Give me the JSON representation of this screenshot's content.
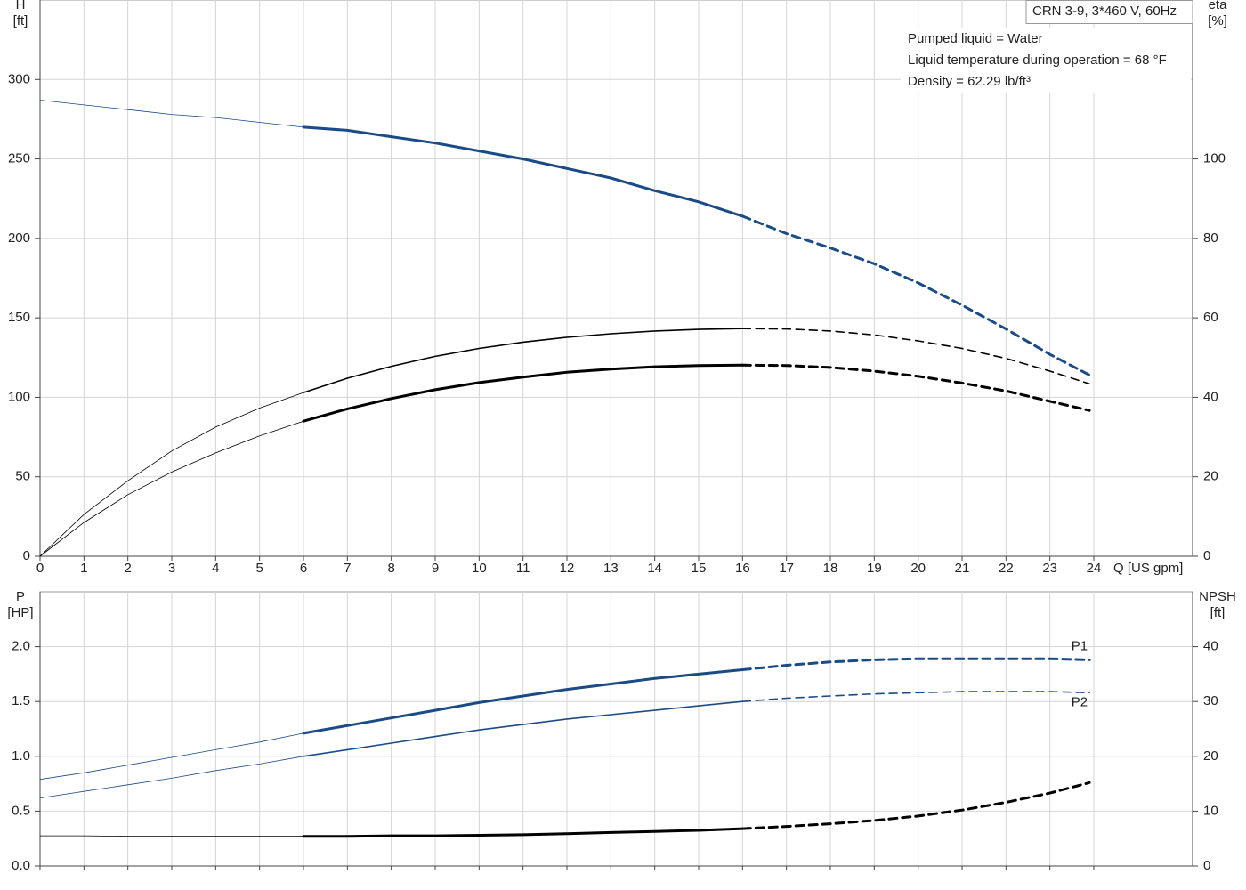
{
  "chart_data": [
    {
      "type": "line",
      "title": "CRN 3-9, 3*460 V, 60Hz",
      "annotations": [
        "Pumped liquid = Water",
        "Liquid temperature during operation = 68 °F",
        "Density = 62.29 lb/ft³"
      ],
      "xlabel": "Q [US gpm]",
      "ylabel": [
        "H",
        "[ft]"
      ],
      "y2label": [
        "eta",
        "[%]"
      ],
      "x": [
        0,
        1,
        2,
        3,
        4,
        5,
        6,
        7,
        8,
        9,
        10,
        11,
        12,
        13,
        14,
        15,
        16,
        17,
        18,
        19,
        20,
        21,
        22,
        23,
        23.9
      ],
      "xlim": [
        0,
        26.25
      ],
      "xticks": [
        0,
        1,
        2,
        3,
        4,
        5,
        6,
        7,
        8,
        9,
        10,
        11,
        12,
        13,
        14,
        15,
        16,
        17,
        18,
        19,
        20,
        21,
        22,
        23,
        24
      ],
      "ylim": [
        0,
        350
      ],
      "yticks": [
        0,
        50,
        100,
        150,
        200,
        250,
        300
      ],
      "y2lim": [
        0,
        140
      ],
      "y2ticks": [
        0,
        20,
        40,
        60,
        80,
        100
      ],
      "grid": true,
      "operating_range": [
        6,
        16
      ],
      "series": [
        {
          "color": "#1a4b87",
          "width": 3,
          "values": [
            287,
            284,
            281,
            278,
            276,
            273,
            270,
            268,
            264,
            260,
            255,
            250,
            244,
            238,
            230,
            223,
            214,
            203,
            194,
            184,
            172,
            158,
            143,
            127,
            114
          ]
        },
        {
          "color": "#000000",
          "width": 1.6,
          "axis": "y2",
          "values": [
            0,
            10.5,
            19,
            26.5,
            32.5,
            37.3,
            41.2,
            44.8,
            47.8,
            50.3,
            52.3,
            53.9,
            55.1,
            56.0,
            56.7,
            57.1,
            57.3,
            57.2,
            56.7,
            55.7,
            54.2,
            52.3,
            49.8,
            46.6,
            43.4
          ]
        },
        {
          "color": "#000000",
          "width": 3,
          "axis": "y2",
          "values": [
            0,
            8.5,
            15.5,
            21.2,
            26,
            30.3,
            34,
            37.1,
            39.7,
            41.9,
            43.7,
            45.1,
            46.3,
            47.1,
            47.7,
            48.0,
            48.1,
            48.0,
            47.5,
            46.6,
            45.3,
            43.6,
            41.6,
            39.0,
            36.7
          ]
        }
      ]
    },
    {
      "type": "line",
      "ylabel": [
        "P",
        "[HP]"
      ],
      "y2label": [
        "NPSH",
        "[ft]"
      ],
      "x": [
        0,
        1,
        2,
        3,
        4,
        5,
        6,
        7,
        8,
        9,
        10,
        11,
        12,
        13,
        14,
        15,
        16,
        17,
        18,
        19,
        20,
        21,
        22,
        23,
        23.9
      ],
      "xlim": [
        0,
        26.25
      ],
      "xticks": [
        0,
        1,
        2,
        3,
        4,
        5,
        6,
        7,
        8,
        9,
        10,
        11,
        12,
        13,
        14,
        15,
        16,
        17,
        18,
        19,
        20,
        21,
        22,
        23,
        24
      ],
      "xtick_labels": false,
      "ylim": [
        0,
        2.5
      ],
      "yticks": [
        {
          "value": 0,
          "label": "0.0"
        },
        0.5,
        {
          "value": 1,
          "label": "1.0"
        },
        1.5,
        {
          "value": 2,
          "label": "2.0"
        }
      ],
      "y2lim": [
        0,
        50
      ],
      "y2ticks": [
        0,
        10,
        20,
        30,
        40
      ],
      "grid": true,
      "operating_range": [
        6,
        16
      ],
      "series": [
        {
          "name": "P1",
          "color": "#1a4b87",
          "width": 3,
          "values": [
            0.79,
            0.85,
            0.92,
            0.99,
            1.06,
            1.13,
            1.21,
            1.28,
            1.35,
            1.42,
            1.49,
            1.55,
            1.61,
            1.66,
            1.71,
            1.75,
            1.79,
            1.83,
            1.86,
            1.88,
            1.89,
            1.89,
            1.89,
            1.89,
            1.88
          ]
        },
        {
          "name": "P2",
          "color": "#1a4b87",
          "width": 1.6,
          "values": [
            0.62,
            0.68,
            0.74,
            0.8,
            0.87,
            0.93,
            1.0,
            1.06,
            1.12,
            1.18,
            1.24,
            1.29,
            1.34,
            1.38,
            1.42,
            1.46,
            1.5,
            1.53,
            1.55,
            1.57,
            1.58,
            1.59,
            1.59,
            1.59,
            1.58
          ]
        },
        {
          "color": "#000000",
          "width": 3,
          "axis": "y2",
          "values": [
            5.5,
            5.5,
            5.4,
            5.4,
            5.4,
            5.4,
            5.4,
            5.4,
            5.5,
            5.5,
            5.6,
            5.7,
            5.9,
            6.1,
            6.3,
            6.5,
            6.8,
            7.2,
            7.7,
            8.3,
            9.1,
            10.2,
            11.6,
            13.3,
            15.2
          ]
        }
      ]
    }
  ]
}
